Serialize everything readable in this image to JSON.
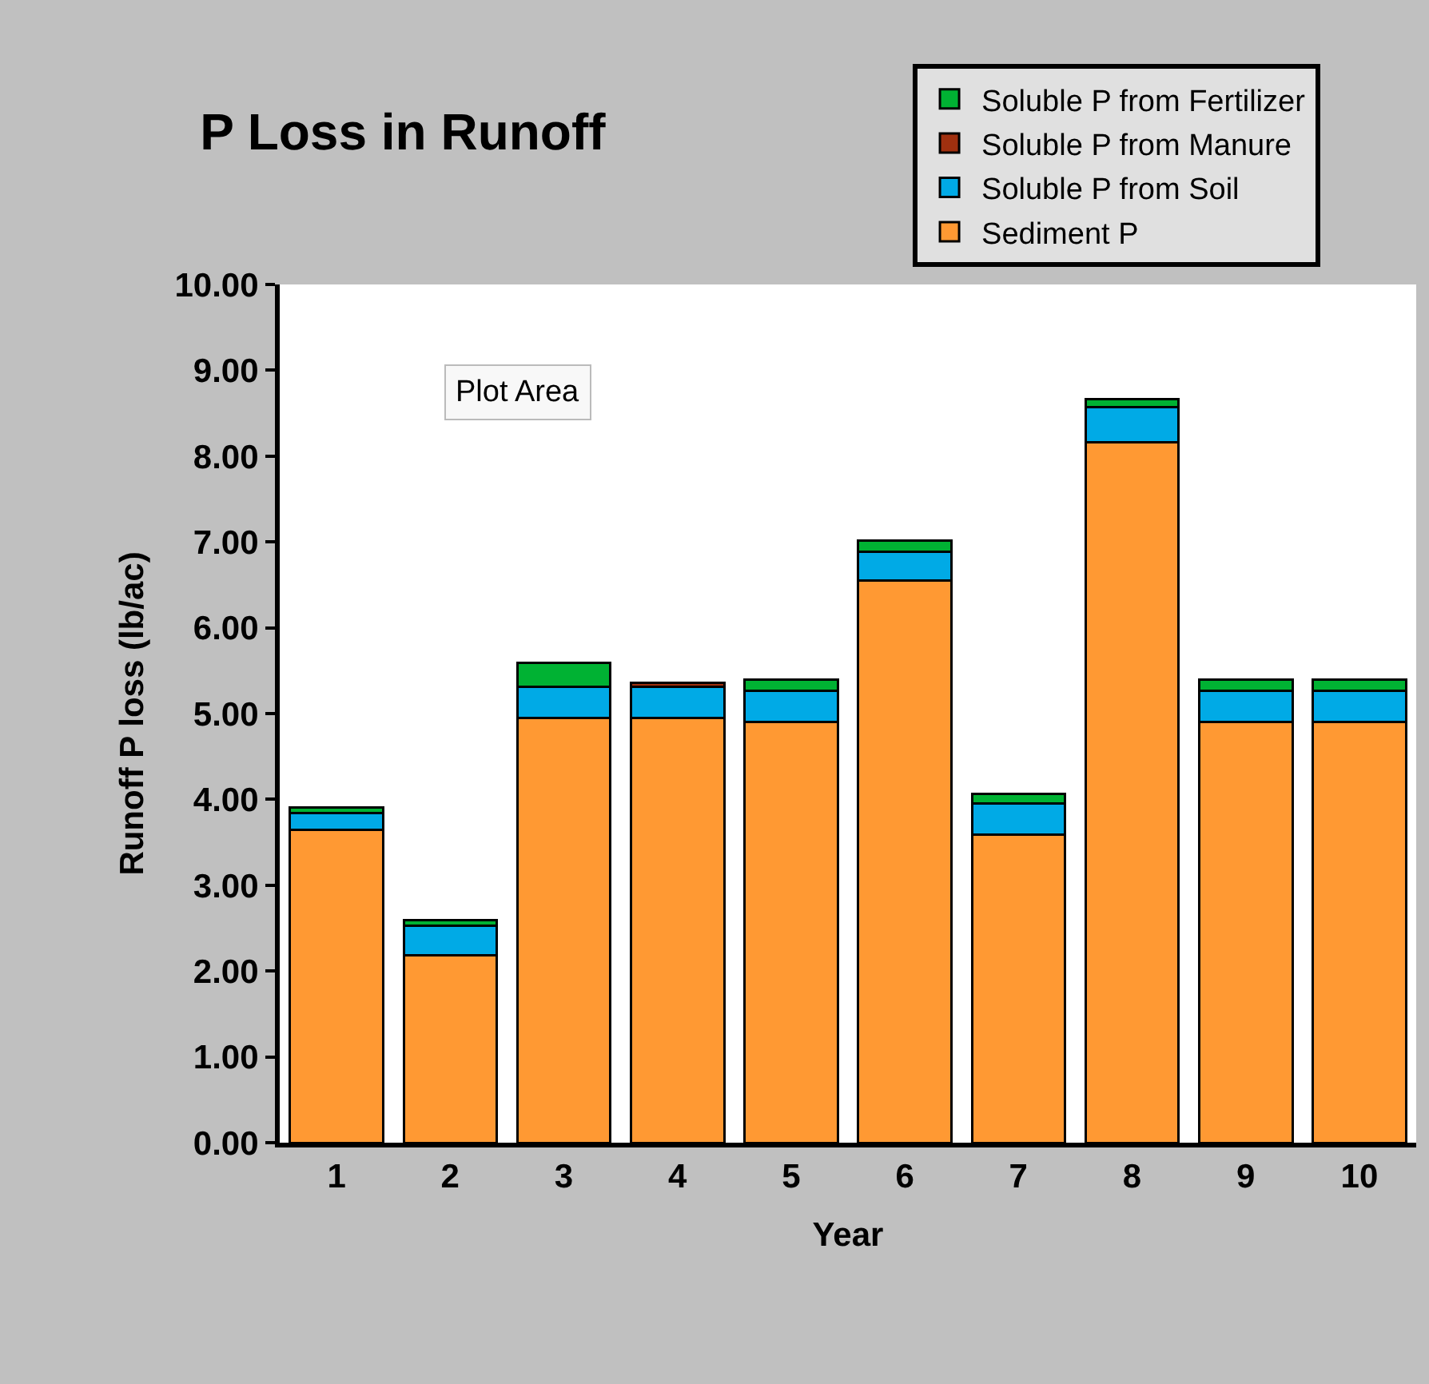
{
  "chart_data": {
    "type": "bar",
    "title": "P Loss in Runoff",
    "xlabel": "Year",
    "ylabel": "Runoff P loss (lb/ac)",
    "categories": [
      "1",
      "2",
      "3",
      "4",
      "5",
      "6",
      "7",
      "8",
      "9",
      "10"
    ],
    "stacked": true,
    "series": [
      {
        "name": "Sediment P",
        "color": "#ff9933",
        "values": [
          3.65,
          2.18,
          4.95,
          4.95,
          4.9,
          6.55,
          3.59,
          8.16,
          4.9,
          4.9
        ]
      },
      {
        "name": "Soluble P from Soil",
        "color": "#00aae6",
        "values": [
          0.19,
          0.35,
          0.36,
          0.36,
          0.37,
          0.34,
          0.36,
          0.41,
          0.37,
          0.37
        ]
      },
      {
        "name": "Soluble P from Manure",
        "color": "#a0300f",
        "values": [
          null,
          null,
          null,
          0.05,
          null,
          null,
          null,
          null,
          null,
          null
        ]
      },
      {
        "name": "Soluble P from Fertilizer",
        "color": "#00b233",
        "values": [
          0.07,
          0.06,
          0.28,
          null,
          0.13,
          0.13,
          0.11,
          0.09,
          0.13,
          0.13
        ]
      }
    ],
    "ylim": [
      0,
      10
    ],
    "yticks": [
      {
        "value": 0,
        "label": "0.00"
      },
      {
        "value": 1,
        "label": "1.00"
      },
      {
        "value": 2,
        "label": "2.00"
      },
      {
        "value": 3,
        "label": "3.00"
      },
      {
        "value": 4,
        "label": "4.00"
      },
      {
        "value": 5,
        "label": "5.00"
      },
      {
        "value": 6,
        "label": "6.00"
      },
      {
        "value": 7,
        "label": "7.00"
      },
      {
        "value": 8,
        "label": "8.00"
      },
      {
        "value": 9,
        "label": "9.00"
      },
      {
        "value": 10,
        "label": "10.00"
      }
    ],
    "grid": false,
    "legend": "top right",
    "annotations": [
      "Plot Area"
    ]
  }
}
